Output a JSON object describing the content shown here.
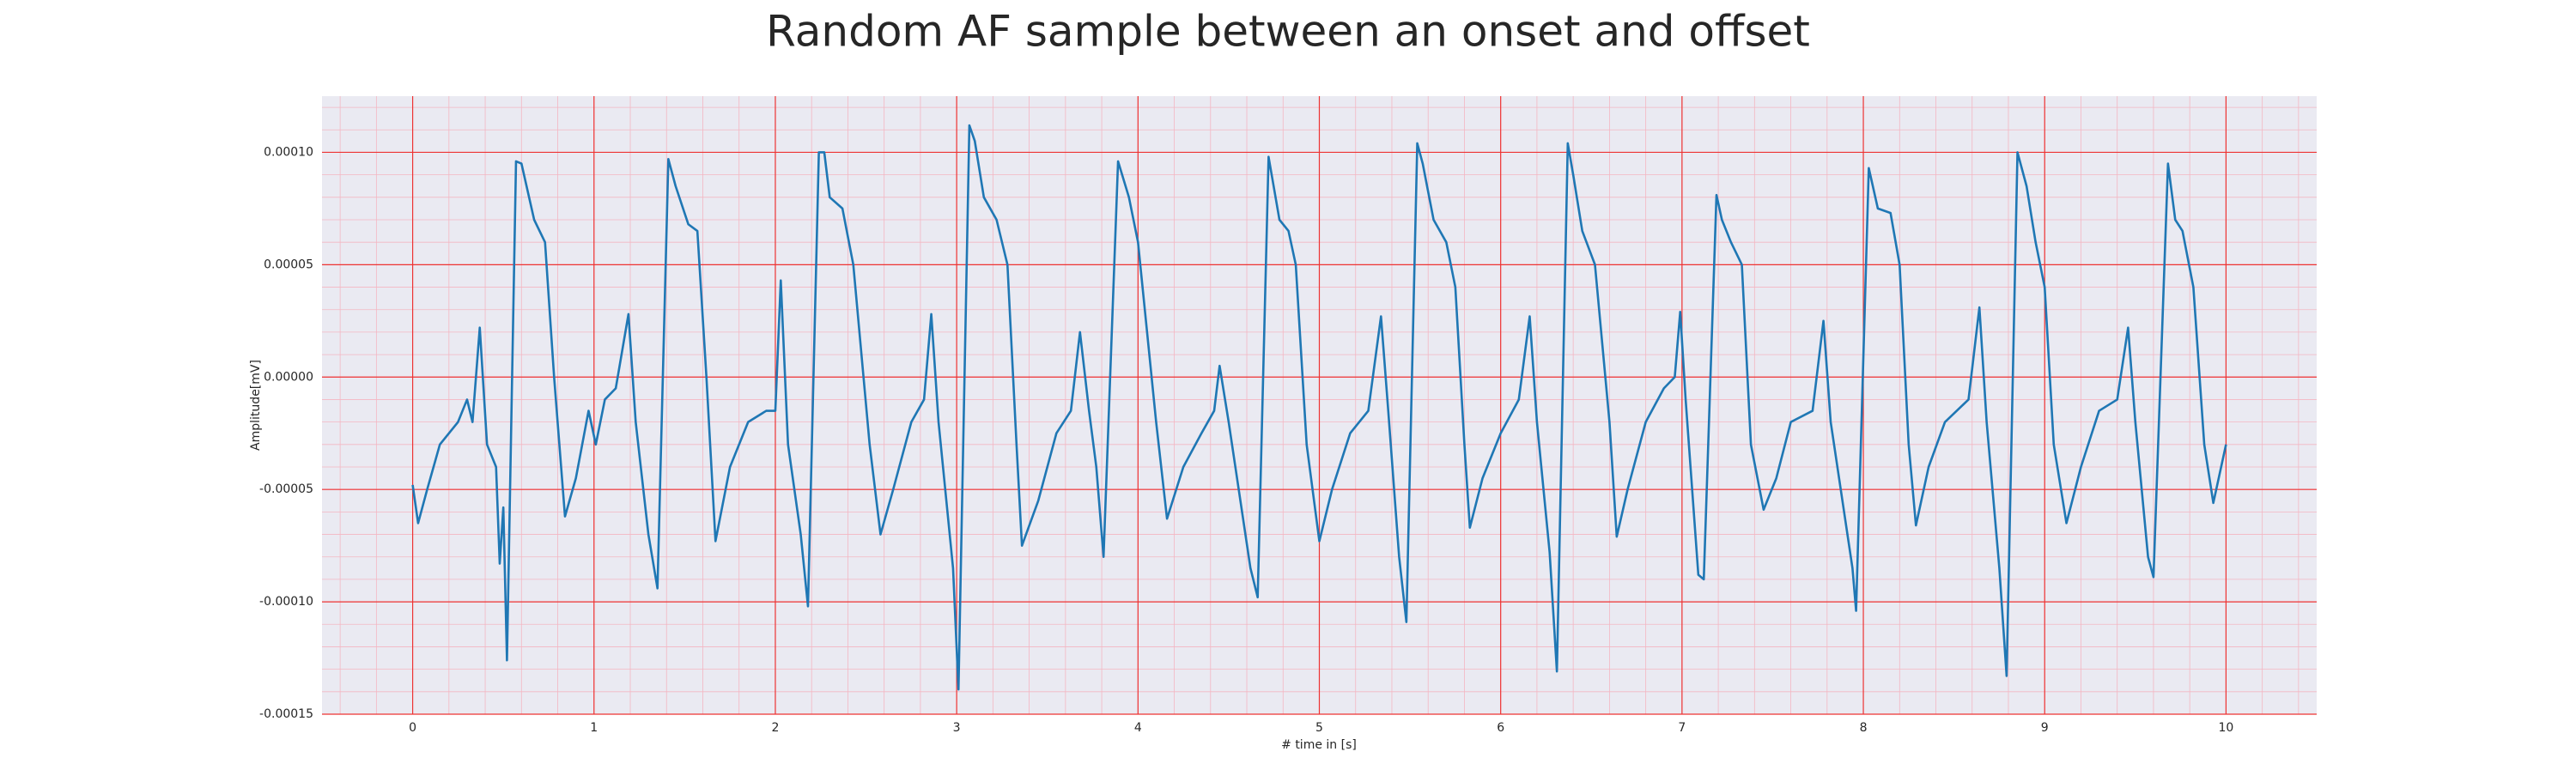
{
  "chart_data": {
    "type": "line",
    "title": "Random AF sample between an onset and offset",
    "xlabel": "# time in [s]",
    "ylabel": "Amplitude[mV]",
    "color": "#1f77b4",
    "grid": true,
    "xlim": [
      -0.5,
      10.5
    ],
    "xticks": [
      0,
      1,
      2,
      3,
      4,
      5,
      6,
      7,
      8,
      9,
      10
    ],
    "ylim": [
      -0.00015,
      0.000125
    ],
    "yticks": [
      {
        "value": -0.00015,
        "label": "-0.00015"
      },
      {
        "value": -0.0001,
        "label": "-0.00010"
      },
      {
        "value": -5e-05,
        "label": "-0.00005"
      },
      {
        "value": 0,
        "label": "0.00000"
      },
      {
        "value": 5e-05,
        "label": "0.00005"
      },
      {
        "value": 0.0001,
        "label": "0.00010"
      }
    ],
    "x": [
      0,
      0.03,
      0.08,
      0.15,
      0.25,
      0.3,
      0.33,
      0.37,
      0.41,
      0.46,
      0.48,
      0.5,
      0.52,
      0.57,
      0.6,
      0.67,
      0.73,
      0.78,
      0.84,
      0.9,
      0.97,
      1.01,
      1.06,
      1.12,
      1.19,
      1.23,
      1.3,
      1.35,
      1.41,
      1.45,
      1.52,
      1.57,
      1.62,
      1.67,
      1.75,
      1.85,
      1.95,
      2.0,
      2.03,
      2.07,
      2.14,
      2.18,
      2.24,
      2.27,
      2.3,
      2.37,
      2.43,
      2.52,
      2.58,
      2.65,
      2.75,
      2.82,
      2.86,
      2.9,
      2.98,
      3.01,
      3.07,
      3.1,
      3.15,
      3.22,
      3.28,
      3.33,
      3.36,
      3.45,
      3.55,
      3.63,
      3.68,
      3.73,
      3.77,
      3.81,
      3.89,
      3.95,
      4.0,
      4.1,
      4.16,
      4.25,
      4.35,
      4.42,
      4.45,
      4.5,
      4.62,
      4.66,
      4.72,
      4.78,
      4.83,
      4.87,
      4.93,
      5.0,
      5.07,
      5.17,
      5.27,
      5.34,
      5.38,
      5.44,
      5.48,
      5.54,
      5.57,
      5.63,
      5.7,
      5.75,
      5.8,
      5.83,
      5.9,
      6.0,
      6.1,
      6.16,
      6.2,
      6.27,
      6.31,
      6.37,
      6.4,
      6.45,
      6.52,
      6.6,
      6.64,
      6.7,
      6.8,
      6.9,
      6.96,
      6.99,
      7.02,
      7.09,
      7.12,
      7.19,
      7.22,
      7.27,
      7.33,
      7.38,
      7.45,
      7.52,
      7.6,
      7.72,
      7.78,
      7.82,
      7.94,
      7.96,
      8.03,
      8.08,
      8.15,
      8.2,
      8.25,
      8.29,
      8.36,
      8.45,
      8.58,
      8.64,
      8.68,
      8.75,
      8.79,
      8.85,
      8.9,
      8.95,
      9.0,
      9.05,
      9.12,
      9.2,
      9.3,
      9.4,
      9.46,
      9.5,
      9.57,
      9.6,
      9.68,
      9.72,
      9.76,
      9.82,
      9.88,
      9.93,
      10.0
    ],
    "values": [
      -4.8e-05,
      -6.5e-05,
      -5e-05,
      -3e-05,
      -2e-05,
      -1e-05,
      -2e-05,
      2.2e-05,
      -3e-05,
      -4e-05,
      -8.3e-05,
      -5.8e-05,
      -0.000126,
      9.6e-05,
      9.5e-05,
      7e-05,
      6e-05,
      0,
      -6.2e-05,
      -4.5e-05,
      -1.5e-05,
      -3e-05,
      -1e-05,
      -5e-06,
      2.8e-05,
      -2e-05,
      -7e-05,
      -9.4e-05,
      9.7e-05,
      8.5e-05,
      6.8e-05,
      6.5e-05,
      0,
      -7.3e-05,
      -4e-05,
      -2e-05,
      -1.5e-05,
      -1.5e-05,
      4.3e-05,
      -3e-05,
      -7e-05,
      -0.000102,
      0.0001,
      0.0001,
      8e-05,
      7.5e-05,
      5e-05,
      -3e-05,
      -7e-05,
      -5e-05,
      -2e-05,
      -1e-05,
      2.8e-05,
      -2e-05,
      -8.5e-05,
      -0.000139,
      0.000112,
      0.000105,
      8e-05,
      7e-05,
      5e-05,
      -3e-05,
      -7.5e-05,
      -5.5e-05,
      -2.5e-05,
      -1.5e-05,
      2e-05,
      -1.5e-05,
      -4e-05,
      -8e-05,
      9.6e-05,
      8e-05,
      6e-05,
      -2e-05,
      -6.3e-05,
      -4e-05,
      -2.5e-05,
      -1.5e-05,
      5e-06,
      -2e-05,
      -8.5e-05,
      -9.8e-05,
      9.8e-05,
      7e-05,
      6.5e-05,
      5e-05,
      -3e-05,
      -7.3e-05,
      -5e-05,
      -2.5e-05,
      -1.5e-05,
      2.7e-05,
      -1.5e-05,
      -8e-05,
      -0.000109,
      0.000104,
      9.5e-05,
      7e-05,
      6e-05,
      4e-05,
      -3e-05,
      -6.7e-05,
      -4.5e-05,
      -2.5e-05,
      -1e-05,
      2.7e-05,
      -2e-05,
      -7.8e-05,
      -0.000131,
      0.000104,
      9e-05,
      6.5e-05,
      5e-05,
      -2e-05,
      -7.1e-05,
      -5e-05,
      -2e-05,
      -5e-06,
      0,
      2.9e-05,
      -1e-05,
      -8.8e-05,
      -9e-05,
      8.1e-05,
      7e-05,
      6e-05,
      5e-05,
      -3e-05,
      -5.9e-05,
      -4.5e-05,
      -2e-05,
      -1.5e-05,
      2.5e-05,
      -2e-05,
      -8.5e-05,
      -0.000104,
      9.3e-05,
      7.5e-05,
      7.3e-05,
      5e-05,
      -3e-05,
      -6.6e-05,
      -4e-05,
      -2e-05,
      -1e-05,
      3.1e-05,
      -2e-05,
      -8.5e-05,
      -0.000133,
      0.0001,
      8.5e-05,
      6e-05,
      4e-05,
      -3e-05,
      -6.5e-05,
      -4e-05,
      -1.5e-05,
      -1e-05,
      2.2e-05,
      -2e-05,
      -8e-05,
      -8.9e-05,
      9.5e-05,
      7e-05,
      6.5e-05,
      4e-05,
      -3e-05,
      -5.6e-05,
      -3e-05
    ]
  }
}
